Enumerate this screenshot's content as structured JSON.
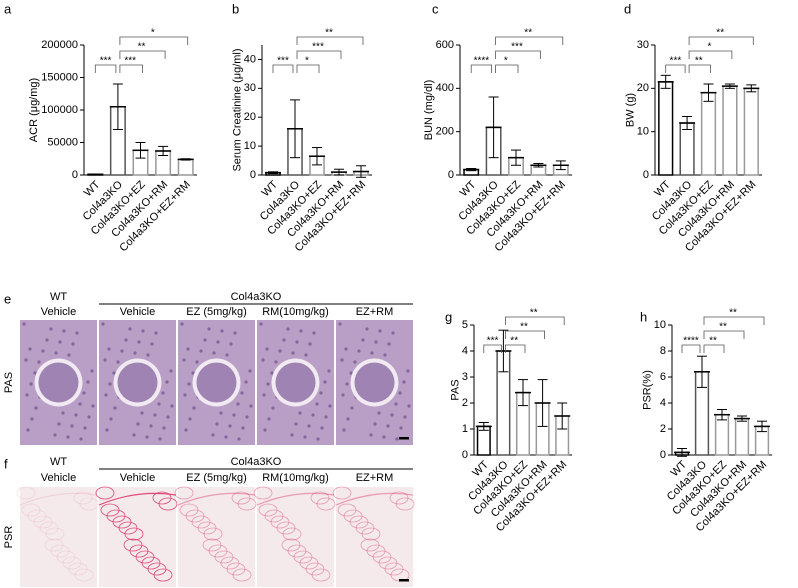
{
  "chart_data": [
    {
      "type": "bar",
      "panel": "a",
      "ylabel": "ACR (μg/mg)",
      "categories": [
        "WT",
        "Col4a3KO",
        "Col4a3KO+EZ",
        "Col4a3KO+RM",
        "Col4a3KO+EZ+RM"
      ],
      "values": [
        1000,
        105000,
        38000,
        37000,
        24000
      ],
      "errors": [
        500,
        35000,
        12000,
        7000,
        1000
      ],
      "colors": [
        "#000000",
        "#555555",
        "#999999",
        "#999999",
        "#999999"
      ],
      "ylim": [
        0,
        200000
      ],
      "yticks": [
        0,
        50000,
        100000,
        150000,
        200000
      ],
      "annotations": [
        "***",
        "***",
        "**",
        "*"
      ]
    },
    {
      "type": "bar",
      "panel": "b",
      "ylabel": "Serum Creatinine (μg/ml)",
      "categories": [
        "WT",
        "Col4a3KO",
        "Col4a3KO+EZ",
        "Col4a3KO+RM",
        "Col4a3KO+EZ+RM"
      ],
      "values": [
        0.8,
        16,
        6.5,
        1,
        1.2
      ],
      "errors": [
        0.3,
        10,
        3,
        1,
        2
      ],
      "colors": [
        "#000000",
        "#555555",
        "#999999",
        "#999999",
        "#999999"
      ],
      "ylim": [
        0,
        45
      ],
      "yticks": [
        0,
        10,
        20,
        30,
        40
      ],
      "annotations": [
        "***",
        "*",
        "***",
        "**"
      ]
    },
    {
      "type": "bar",
      "panel": "c",
      "ylabel": "BUN (mg/dl)",
      "categories": [
        "WT",
        "Col4a3KO",
        "Col4a3KO+EZ",
        "Col4a3KO+RM",
        "Col4a3KO+EZ+RM"
      ],
      "values": [
        25,
        220,
        80,
        45,
        45
      ],
      "errors": [
        5,
        140,
        35,
        8,
        20
      ],
      "colors": [
        "#000000",
        "#555555",
        "#999999",
        "#999999",
        "#999999"
      ],
      "ylim": [
        0,
        600
      ],
      "yticks": [
        0,
        200,
        400,
        600
      ],
      "annotations": [
        "****",
        "*",
        "***",
        "**"
      ]
    },
    {
      "type": "bar",
      "panel": "d",
      "ylabel": "BW (g)",
      "categories": [
        "WT",
        "Col4a3KO",
        "Col4a3KO+EZ",
        "Col4a3KO+RM",
        "Col4a3KO+EZ+RM"
      ],
      "values": [
        21.5,
        12,
        19,
        20.5,
        20
      ],
      "errors": [
        1.5,
        1.5,
        2,
        0.5,
        0.8
      ],
      "colors": [
        "#000000",
        "#555555",
        "#999999",
        "#999999",
        "#999999"
      ],
      "ylim": [
        0,
        30
      ],
      "yticks": [
        0,
        10,
        20,
        30
      ],
      "annotations": [
        "***",
        "**",
        "*",
        "**"
      ]
    },
    {
      "type": "bar",
      "panel": "g",
      "ylabel": "PAS",
      "categories": [
        "WT",
        "Col4a3KO",
        "Col4a3KO+EZ",
        "Col4a3KO+RM",
        "Col4a3KO+EZ+RM"
      ],
      "values": [
        1.1,
        4,
        2.4,
        2,
        1.5
      ],
      "errors": [
        0.15,
        0.8,
        0.5,
        0.9,
        0.5
      ],
      "colors": [
        "#000000",
        "#555555",
        "#999999",
        "#999999",
        "#999999"
      ],
      "ylim": [
        0,
        5
      ],
      "yticks": [
        0,
        1,
        2,
        3,
        4,
        5
      ],
      "annotations": [
        "***",
        "**",
        "**",
        "**"
      ]
    },
    {
      "type": "bar",
      "panel": "h",
      "ylabel": "PSR(%)",
      "categories": [
        "WT",
        "Col4a3KO",
        "Col4a3KO+EZ",
        "Col4a3KO+RM",
        "Col4a3KO+EZ+RM"
      ],
      "values": [
        0.2,
        6.4,
        3.1,
        2.8,
        2.2
      ],
      "errors": [
        0.3,
        1.2,
        0.4,
        0.2,
        0.4
      ],
      "colors": [
        "#000000",
        "#555555",
        "#999999",
        "#999999",
        "#999999"
      ],
      "ylim": [
        0,
        10
      ],
      "yticks": [
        0,
        2,
        4,
        6,
        8,
        10
      ],
      "annotations": [
        "****",
        "**",
        "**",
        "**"
      ]
    }
  ],
  "images": [
    {
      "panel": "e",
      "row_label": "PAS",
      "group_labels": [
        "WT",
        "Col4a3KO"
      ],
      "column_labels": [
        "Vehicle",
        "Vehicle",
        "EZ (5mg/kg)",
        "RM(10mg/kg)",
        "EZ+RM"
      ]
    },
    {
      "panel": "f",
      "row_label": "PSR",
      "group_labels": [
        "WT",
        "Col4a3KO"
      ],
      "column_labels": [
        "Vehicle",
        "Vehicle",
        "EZ (5mg/kg)",
        "RM(10mg/kg)",
        "EZ+RM"
      ]
    }
  ]
}
